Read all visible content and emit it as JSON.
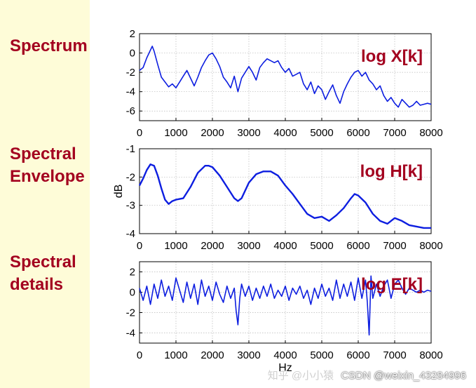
{
  "labels": {
    "spectrum": "Spectrum",
    "envelope": "Spectral\nEnvelope",
    "details": "Spectral\ndetails"
  },
  "watermark": {
    "faint": "知乎 @小小猿",
    "text": "CSDN @weixin_43284996"
  },
  "colors": {
    "line": "#0d1ee0",
    "label": "#a3001f",
    "background": "#fefcd8"
  },
  "chart_data": [
    {
      "type": "line",
      "annotation": "log X[k]",
      "xlabel": "",
      "ylabel": "",
      "xlim": [
        0,
        8000
      ],
      "ylim": [
        -7,
        2
      ],
      "xticks": [
        "0",
        "1000",
        "2000",
        "3000",
        "4000",
        "5000",
        "6000",
        "7000",
        "8000"
      ],
      "yticks": [
        "2",
        "0",
        "-2",
        "-4",
        "-6"
      ],
      "grid": true,
      "series": [
        {
          "x": [
            0,
            100,
            200,
            300,
            350,
            400,
            500,
            600,
            700,
            800,
            900,
            1000,
            1100,
            1200,
            1300,
            1400,
            1500,
            1600,
            1700,
            1800,
            1900,
            2000,
            2100,
            2200,
            2300,
            2400,
            2500,
            2600,
            2700,
            2800,
            2900,
            3000,
            3100,
            3200,
            3300,
            3400,
            3500,
            3600,
            3700,
            3800,
            3900,
            4000,
            4100,
            4200,
            4300,
            4400,
            4500,
            4600,
            4700,
            4800,
            4900,
            5000,
            5100,
            5200,
            5300,
            5400,
            5500,
            5600,
            5700,
            5800,
            5900,
            6000,
            6100,
            6200,
            6300,
            6400,
            6500,
            6600,
            6700,
            6800,
            6900,
            7000,
            7100,
            7200,
            7300,
            7400,
            7500,
            7600,
            7700,
            7800,
            7900,
            8000
          ],
          "y": [
            -1.8,
            -1.5,
            -0.5,
            0.3,
            0.7,
            0.2,
            -1.2,
            -2.5,
            -3.0,
            -3.5,
            -3.2,
            -3.6,
            -3.0,
            -2.4,
            -1.8,
            -2.6,
            -3.4,
            -2.5,
            -1.5,
            -0.8,
            -0.2,
            0.0,
            -0.6,
            -1.4,
            -2.5,
            -3.0,
            -3.6,
            -2.4,
            -4.0,
            -2.6,
            -2.0,
            -1.4,
            -2.0,
            -2.8,
            -1.5,
            -1.0,
            -0.6,
            -0.8,
            -1.0,
            -0.8,
            -1.5,
            -2.0,
            -1.6,
            -2.4,
            -2.2,
            -2.0,
            -3.2,
            -3.8,
            -3.0,
            -4.2,
            -3.4,
            -3.8,
            -4.8,
            -4.0,
            -3.3,
            -4.4,
            -5.2,
            -4.0,
            -3.2,
            -2.5,
            -2.0,
            -1.8,
            -2.4,
            -2.0,
            -2.8,
            -3.2,
            -3.8,
            -3.4,
            -4.4,
            -5.0,
            -4.6,
            -5.2,
            -5.6,
            -4.8,
            -5.2,
            -5.6,
            -5.4,
            -5.0,
            -5.4,
            -5.3,
            -5.2,
            -5.3
          ]
        }
      ]
    },
    {
      "type": "line",
      "annotation": "log H[k]",
      "xlabel": "",
      "ylabel": "dB",
      "xlim": [
        0,
        8000
      ],
      "ylim": [
        -4,
        -1
      ],
      "xticks": [
        "0",
        "1000",
        "2000",
        "3000",
        "4000",
        "5000",
        "6000",
        "7000",
        "8000"
      ],
      "yticks": [
        "-1",
        "-2",
        "-3",
        "-4"
      ],
      "grid": true,
      "series": [
        {
          "x": [
            0,
            100,
            200,
            300,
            400,
            500,
            600,
            700,
            800,
            900,
            1000,
            1200,
            1400,
            1600,
            1800,
            1900,
            2000,
            2200,
            2400,
            2600,
            2700,
            2800,
            3000,
            3200,
            3400,
            3600,
            3800,
            4000,
            4200,
            4400,
            4600,
            4800,
            5000,
            5200,
            5400,
            5600,
            5800,
            5900,
            6000,
            6200,
            6400,
            6600,
            6800,
            7000,
            7200,
            7400,
            7600,
            7800,
            8000
          ],
          "y": [
            -2.3,
            -2.05,
            -1.75,
            -1.55,
            -1.6,
            -1.95,
            -2.4,
            -2.8,
            -2.95,
            -2.85,
            -2.8,
            -2.75,
            -2.35,
            -1.85,
            -1.6,
            -1.6,
            -1.65,
            -1.95,
            -2.35,
            -2.75,
            -2.85,
            -2.75,
            -2.2,
            -1.9,
            -1.8,
            -1.8,
            -1.95,
            -2.3,
            -2.6,
            -2.95,
            -3.3,
            -3.45,
            -3.4,
            -3.55,
            -3.35,
            -3.1,
            -2.75,
            -2.6,
            -2.65,
            -2.9,
            -3.3,
            -3.55,
            -3.65,
            -3.45,
            -3.55,
            -3.7,
            -3.75,
            -3.8,
            -3.8
          ]
        }
      ]
    },
    {
      "type": "line",
      "annotation": "log E[k]",
      "xlabel": "Hz",
      "ylabel": "",
      "xlim": [
        0,
        8000
      ],
      "ylim": [
        -5,
        3
      ],
      "xticks": [
        "0",
        "1000",
        "2000",
        "3000",
        "4000",
        "5000",
        "6000",
        "7000",
        "8000"
      ],
      "yticks": [
        "2",
        "0",
        "-2",
        "-4"
      ],
      "grid": true,
      "series": [
        {
          "x": [
            0,
            100,
            200,
            300,
            400,
            500,
            600,
            700,
            800,
            900,
            1000,
            1100,
            1200,
            1300,
            1400,
            1500,
            1600,
            1700,
            1800,
            1900,
            2000,
            2100,
            2200,
            2300,
            2400,
            2500,
            2600,
            2650,
            2700,
            2750,
            2800,
            2900,
            3000,
            3100,
            3200,
            3300,
            3400,
            3500,
            3600,
            3700,
            3800,
            3900,
            4000,
            4100,
            4200,
            4300,
            4400,
            4500,
            4600,
            4700,
            4800,
            4900,
            5000,
            5100,
            5200,
            5300,
            5400,
            5500,
            5600,
            5700,
            5800,
            5900,
            6000,
            6100,
            6200,
            6250,
            6300,
            6350,
            6400,
            6500,
            6600,
            6700,
            6800,
            6900,
            7000,
            7100,
            7200,
            7300,
            7400,
            7500,
            7600,
            7700,
            7800,
            7900,
            8000
          ],
          "y": [
            0.4,
            -0.8,
            0.6,
            -1.2,
            0.8,
            -0.6,
            1.2,
            -0.4,
            0.6,
            -0.8,
            1.4,
            0.2,
            -1.0,
            1.0,
            -0.6,
            0.8,
            -1.2,
            1.2,
            -0.4,
            0.6,
            -0.8,
            1.0,
            -0.2,
            -1.0,
            0.6,
            -0.6,
            0.4,
            -1.8,
            -3.2,
            -0.6,
            0.8,
            -0.4,
            0.6,
            -0.8,
            0.4,
            -0.6,
            0.6,
            -0.4,
            0.8,
            -0.6,
            0.2,
            -0.4,
            0.6,
            -0.8,
            0.4,
            -0.2,
            0.6,
            -0.6,
            0.2,
            -1.2,
            0.4,
            -0.6,
            0.8,
            -0.4,
            0.4,
            -0.8,
            1.2,
            -0.6,
            0.8,
            -0.4,
            1.0,
            -0.8,
            1.4,
            -0.6,
            1.2,
            -1.0,
            -4.2,
            1.6,
            -0.6,
            0.8,
            -0.4,
            0.6,
            1.2,
            -0.6,
            0.8,
            1.2,
            0.4,
            -0.2,
            0.4,
            0.2,
            0.0,
            0.2,
            0.0,
            0.2,
            0.1
          ]
        }
      ]
    }
  ]
}
